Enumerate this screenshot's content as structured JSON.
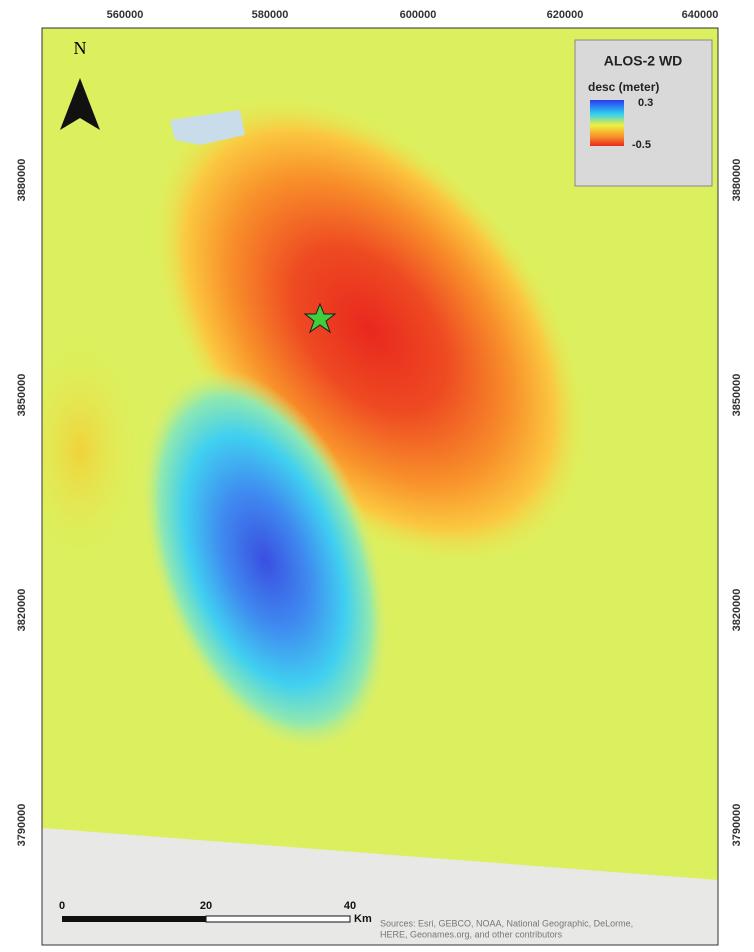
{
  "map": {
    "top_labels": [
      "560000",
      "580000",
      "600000",
      "620000",
      "640000"
    ],
    "left_labels": [
      "3880000",
      "3850000",
      "3820000",
      "3790000"
    ],
    "right_labels": [
      "3880000",
      "3850000",
      "3820000",
      "3790000"
    ],
    "north": "N",
    "legend": {
      "title": "ALOS-2 WD",
      "subtitle": "desc (meter)",
      "max_label": "0.3",
      "min_label": "-0.5"
    },
    "scale_bar": {
      "labels": [
        "0",
        "20",
        "40"
      ],
      "unit": "Km"
    },
    "attribution": [
      "Sources: Esri, GEBCO, NOAA, National Geographic, DeLorme,",
      "HERE, Geonames.org, and other contributors"
    ]
  }
}
